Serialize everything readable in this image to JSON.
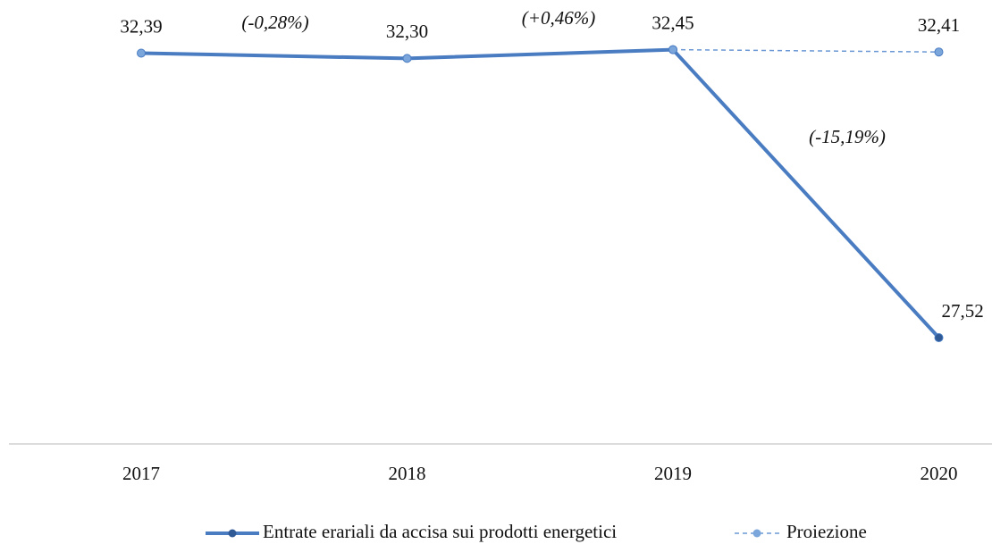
{
  "chart_data": {
    "type": "line",
    "categories": [
      "2017",
      "2018",
      "2019",
      "2020"
    ],
    "series": [
      {
        "name": "Entrate erariali da accisa sui prodotti energetici",
        "color": "#4a7cc2",
        "marker_color": "#2f5a96",
        "values": [
          32.39,
          32.3,
          32.45,
          27.52
        ],
        "value_labels": [
          "32,39",
          "32,30",
          "32,45",
          "27,52"
        ]
      },
      {
        "name": "Proiezione",
        "color": "#6b98d4",
        "marker_color": "#7aa6dc",
        "dashed": true,
        "values": [
          null,
          null,
          32.45,
          32.41
        ],
        "value_labels": [
          null,
          null,
          null,
          "32,41"
        ]
      }
    ],
    "annotations": [
      "(-0,28%)",
      "(+0,46%)",
      "(-15,19%)"
    ],
    "ylim": [
      25.7,
      33.3
    ]
  }
}
